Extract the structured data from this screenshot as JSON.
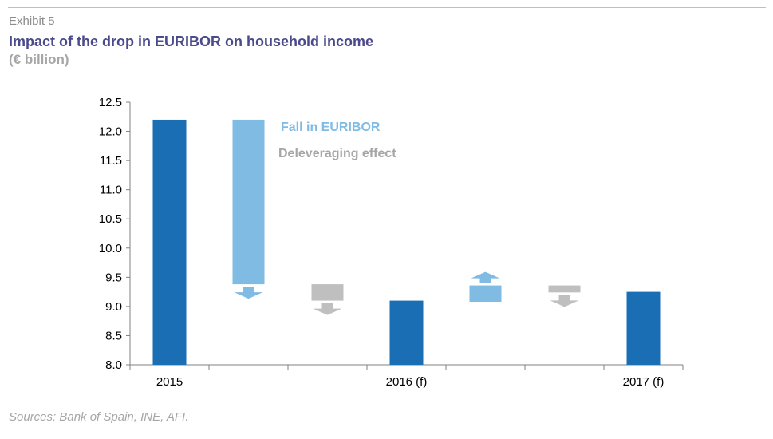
{
  "header": {
    "exhibit": "Exhibit 5",
    "title": "Impact of the drop in EURIBOR on household income",
    "subtitle": "(€ billion)"
  },
  "footer": {
    "source": "Sources: Bank of Spain, INE, AFI."
  },
  "colors": {
    "total_bar": "#1a6eb4",
    "euribor": "#7fbbe3",
    "deleveraging": "#bfbfbf",
    "title": "#4b4a8c"
  },
  "chart_data": {
    "type": "bar",
    "subtype": "waterfall",
    "ylim": [
      8.0,
      12.5
    ],
    "yticks": [
      "8.0",
      "8.5",
      "9.0",
      "9.5",
      "10.0",
      "10.5",
      "11.0",
      "11.5",
      "12.0",
      "12.5"
    ],
    "categories": [
      "2015",
      "",
      "",
      "2016 (f)",
      "",
      "",
      "2017 (f)"
    ],
    "grid": false,
    "legend_position": "top-center",
    "legend": [
      {
        "name": "Fall in EURIBOR",
        "color": "#7fbbe3"
      },
      {
        "name": "Deleveraging effect",
        "color": "#a6a6a6"
      }
    ],
    "bars": [
      {
        "kind": "total",
        "label": "2015",
        "value": 12.2
      },
      {
        "kind": "euribor",
        "from": 12.2,
        "to": 9.38,
        "direction": "down"
      },
      {
        "kind": "deleveraging",
        "from": 9.38,
        "to": 9.1,
        "direction": "down"
      },
      {
        "kind": "total",
        "label": "2016 (f)",
        "value": 9.1
      },
      {
        "kind": "euribor",
        "from": 9.08,
        "to": 9.36,
        "direction": "up"
      },
      {
        "kind": "deleveraging",
        "from": 9.36,
        "to": 9.24,
        "direction": "down"
      },
      {
        "kind": "total",
        "label": "2017 (f)",
        "value": 9.25
      }
    ]
  }
}
